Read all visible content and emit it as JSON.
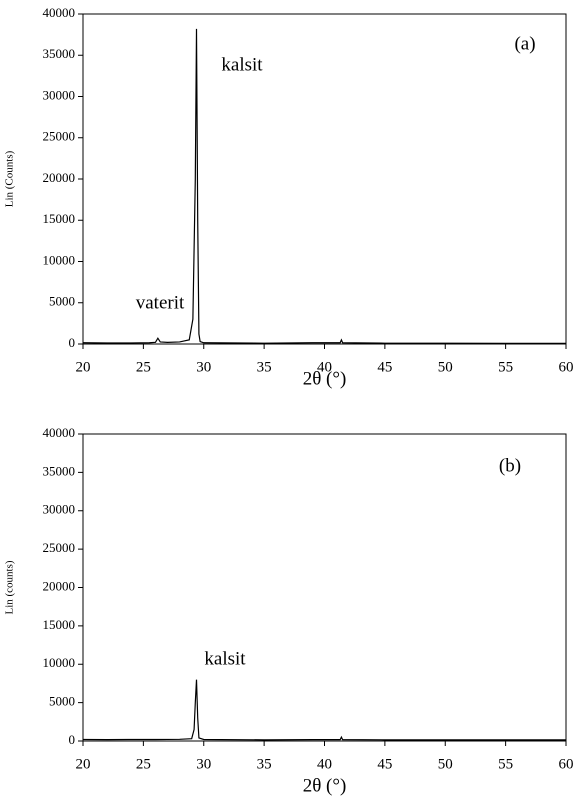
{
  "chart_data": [
    {
      "type": "line",
      "annotations": [
        "(a)",
        "kalsit",
        "vaterit"
      ],
      "y_label": "Lin (Counts)",
      "x_label": "2θ (°)",
      "x": [
        20,
        22,
        24,
        25.5,
        26,
        26.2,
        26.4,
        27,
        28,
        28.8,
        29.1,
        29.3,
        29.4,
        29.5,
        29.6,
        29.7,
        30,
        35,
        39,
        41.3,
        41.4,
        41.5,
        45,
        50,
        55,
        60
      ],
      "values": [
        150,
        120,
        130,
        150,
        200,
        700,
        250,
        200,
        250,
        500,
        3000,
        20000,
        38200,
        15000,
        1200,
        300,
        150,
        100,
        150,
        150,
        500,
        150,
        100,
        100,
        80,
        80
      ],
      "color": "#000000",
      "xlim": [
        20,
        60
      ],
      "xticks": [
        20,
        25,
        30,
        35,
        40,
        45,
        50,
        55,
        60
      ],
      "ylim": [
        0,
        40000
      ],
      "yticks": [
        0,
        5000,
        10000,
        15000,
        20000,
        25000,
        30000,
        35000,
        40000
      ],
      "grid": false
    },
    {
      "type": "line",
      "annotations": [
        "(b)",
        "kalsit"
      ],
      "y_label": "Lin (counts)",
      "x_label": "2θ (°)",
      "x": [
        20,
        22,
        24,
        26,
        28,
        29,
        29.2,
        29.3,
        29.4,
        29.5,
        29.6,
        30,
        35,
        39,
        41.3,
        41.4,
        41.5,
        45,
        50,
        55,
        60
      ],
      "values": [
        200,
        180,
        200,
        200,
        220,
        300,
        1500,
        5000,
        8000,
        3000,
        400,
        200,
        150,
        180,
        180,
        500,
        180,
        150,
        150,
        150,
        150
      ],
      "color": "#000000",
      "xlim": [
        20,
        60
      ],
      "xticks": [
        20,
        25,
        30,
        35,
        40,
        45,
        50,
        55,
        60
      ],
      "ylim": [
        0,
        40000
      ],
      "yticks": [
        0,
        5000,
        10000,
        15000,
        20000,
        25000,
        30000,
        35000,
        40000
      ],
      "grid": false
    }
  ]
}
